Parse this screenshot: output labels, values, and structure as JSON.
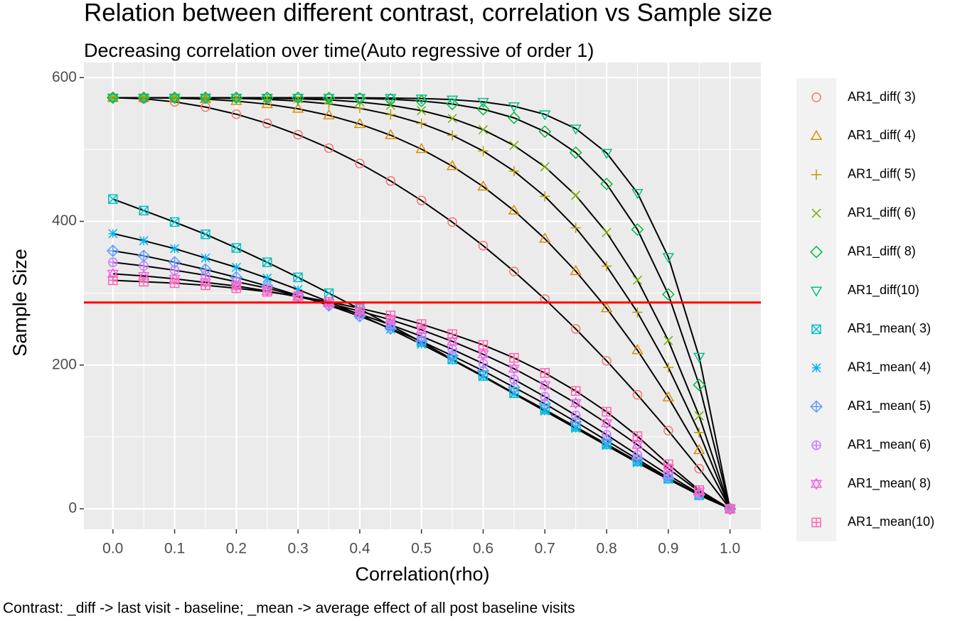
{
  "chart_data": {
    "type": "line",
    "title": "Relation between different contrast, correlation vs Sample size",
    "subtitle": "Decreasing correlation over time(Auto regressive of order 1)",
    "x_label": "Correlation(rho)",
    "y_label": "Sample Size",
    "caption": "Contrast: _diff -> last visit - baseline; _mean -> average effect of all post baseline visits",
    "x": [
      0,
      0.05,
      0.1,
      0.15,
      0.2,
      0.25,
      0.3,
      0.35,
      0.4,
      0.45,
      0.5,
      0.55,
      0.6,
      0.65,
      0.7,
      0.75,
      0.8,
      0.85,
      0.9,
      0.95,
      1
    ],
    "xlim": [
      -0.047,
      1.05
    ],
    "ylim": [
      -28.6,
      621
    ],
    "xticks": [
      {
        "value": 0,
        "label": "0.0"
      },
      0.1,
      0.2,
      0.3,
      0.4,
      0.5,
      0.6,
      0.7,
      0.8,
      0.9,
      {
        "value": 1,
        "label": "1.0"
      }
    ],
    "yticks": [
      0,
      200,
      400,
      600
    ],
    "grid": true,
    "line_color": "#000000",
    "hline": 287,
    "hline_color": "#FF0000",
    "legend": "right",
    "series": [
      {
        "name": "AR1_diff( 3)",
        "color": "#F8766D",
        "shape": "circle",
        "values": [
          572,
          570.6,
          566.3,
          559.1,
          549.1,
          536.3,
          520.5,
          501.9,
          480.5,
          456.2,
          429,
          399,
          366.1,
          330.3,
          291.7,
          250.3,
          205.9,
          158.7,
          108.7,
          55.8,
          0
        ]
      },
      {
        "name": "AR1_diff( 4)",
        "color": "#DE8C00",
        "shape": "triangle",
        "values": [
          572,
          571.9,
          571.4,
          570.1,
          567.4,
          563.1,
          556.6,
          547.5,
          535.4,
          519.9,
          500.5,
          476.8,
          448.4,
          414.9,
          375.8,
          330.7,
          279.1,
          220.7,
          155,
          81.6,
          0
        ]
      },
      {
        "name": "AR1_diff( 5)",
        "color": "#B79F00",
        "shape": "plus",
        "values": [
          572,
          572,
          571.9,
          571.7,
          571.1,
          569.8,
          567.4,
          563.4,
          557.4,
          548.5,
          536.3,
          519.7,
          497.9,
          469.9,
          434.7,
          391,
          337.7,
          273.4,
          196.7,
          106.1,
          0
        ]
      },
      {
        "name": "AR1_diff( 6)",
        "color": "#7CAE00",
        "shape": "cross",
        "values": [
          572,
          572,
          572,
          572,
          571.8,
          571.4,
          570.6,
          569,
          566.1,
          561.4,
          554.1,
          543.2,
          527.5,
          505.6,
          475.9,
          436.3,
          384.6,
          318.2,
          234.2,
          129.4,
          0
        ]
      },
      {
        "name": "AR1_diff( 8)",
        "color": "#00BA38",
        "shape": "diamond",
        "values": [
          572,
          572,
          572,
          572,
          572,
          572,
          571.9,
          571.6,
          571.1,
          569.9,
          567.5,
          563.3,
          556,
          544,
          524.9,
          495.6,
          452,
          388.6,
          298.4,
          172.5,
          0
        ]
      },
      {
        "name": "AR1_diff(10)",
        "color": "#00C08B",
        "shape": "triangle-down",
        "values": [
          572,
          572,
          572,
          572,
          572,
          572,
          572,
          572,
          571.9,
          571.6,
          570.9,
          569.4,
          566.2,
          560.2,
          548.9,
          529.1,
          495.2,
          439.5,
          350.4,
          211.5,
          0
        ]
      },
      {
        "name": "AR1_mean( 3)",
        "color": "#00BFC4",
        "shape": "square-cross",
        "values": [
          431,
          415,
          399,
          382,
          363,
          343,
          322,
          300,
          278,
          255,
          232,
          208,
          185,
          161,
          138,
          114,
          90,
          66,
          42,
          19,
          0
        ]
      },
      {
        "name": "AR1_mean( 4)",
        "color": "#00B4F0",
        "shape": "asterisk",
        "values": [
          383,
          373,
          362,
          349,
          336,
          321,
          305,
          288,
          270,
          250,
          229,
          207,
          184,
          160,
          136,
          112,
          88,
          64,
          41,
          19,
          0
        ]
      },
      {
        "name": "AR1_mean( 5)",
        "color": "#619CFF",
        "shape": "diamond-plus",
        "values": [
          359,
          352,
          343,
          333,
          322,
          310,
          297,
          283,
          268,
          251,
          233,
          213,
          192,
          169,
          146,
          121,
          95,
          69,
          43,
          20,
          0
        ]
      },
      {
        "name": "AR1_mean( 6)",
        "color": "#C77CFF",
        "shape": "circle-plus",
        "values": [
          343,
          338,
          332,
          325,
          316,
          307,
          296,
          284,
          271,
          256,
          240,
          222,
          202,
          180,
          156,
          130,
          103,
          75,
          47,
          21,
          0
        ]
      },
      {
        "name": "AR1_mean( 8)",
        "color": "#F564E3",
        "shape": "star",
        "values": [
          327,
          324,
          320,
          315,
          310,
          303,
          295,
          286,
          275,
          263,
          249,
          233,
          215,
          195,
          172,
          147,
          119,
          89,
          56,
          24,
          0
        ]
      },
      {
        "name": "AR1_mean(10)",
        "color": "#FF64B0",
        "shape": "square-plus",
        "values": [
          318,
          316,
          314,
          311,
          307,
          302,
          296,
          288,
          279,
          269,
          257,
          243,
          228,
          210,
          189,
          164,
          135,
          101,
          62,
          26,
          0
        ]
      }
    ]
  }
}
